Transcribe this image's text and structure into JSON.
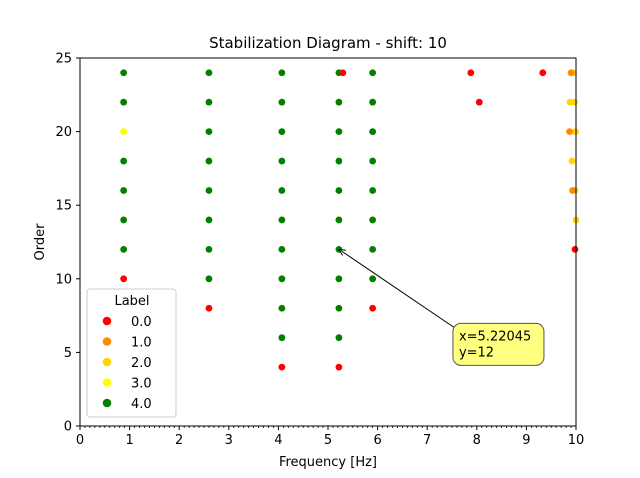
{
  "chart_data": {
    "type": "scatter",
    "title": "Stabilization Diagram - shift: 10",
    "xlabel": "Frequency [Hz]",
    "ylabel": "Order",
    "xlim": [
      0,
      10
    ],
    "ylim": [
      0,
      25
    ],
    "xticks": [
      "0",
      "1",
      "2",
      "3",
      "4",
      "5",
      "6",
      "7",
      "8",
      "9",
      "10"
    ],
    "yticks": [
      "0",
      "5",
      "10",
      "15",
      "20",
      "25"
    ],
    "grid": false,
    "legend": {
      "title": "Label",
      "placement": "lower-left",
      "entries": [
        {
          "label": "0.0",
          "color": "#ff0000"
        },
        {
          "label": "1.0",
          "color": "#ff8c00"
        },
        {
          "label": "2.0",
          "color": "#ffd700"
        },
        {
          "label": "3.0",
          "color": "#ffff00"
        },
        {
          "label": "4.0",
          "color": "#008000"
        }
      ]
    },
    "series": [
      {
        "name": "0.0",
        "color": "#ff0000",
        "points": [
          [
            0.88,
            10
          ],
          [
            2.6,
            8
          ],
          [
            4.07,
            4
          ],
          [
            5.22,
            4
          ],
          [
            5.3,
            24
          ],
          [
            5.9,
            8
          ],
          [
            7.88,
            24
          ],
          [
            8.05,
            22
          ],
          [
            9.33,
            24
          ],
          [
            9.98,
            12
          ]
        ]
      },
      {
        "name": "1.0",
        "color": "#ff8c00",
        "points": [
          [
            9.87,
            20
          ],
          [
            9.9,
            24
          ],
          [
            9.93,
            16
          ]
        ]
      },
      {
        "name": "2.0",
        "color": "#ffd700",
        "points": [
          [
            9.88,
            22
          ],
          [
            9.95,
            24
          ],
          [
            9.92,
            18
          ],
          [
            9.97,
            22
          ],
          [
            9.99,
            20
          ],
          [
            9.98,
            16
          ],
          [
            10.0,
            14
          ]
        ]
      },
      {
        "name": "3.0",
        "color": "#ffff00",
        "points": [
          [
            0.88,
            20
          ]
        ]
      },
      {
        "name": "4.0",
        "color": "#008000",
        "points": [
          [
            0.88,
            12
          ],
          [
            0.88,
            14
          ],
          [
            0.88,
            16
          ],
          [
            0.88,
            18
          ],
          [
            0.88,
            22
          ],
          [
            0.88,
            24
          ],
          [
            2.6,
            10
          ],
          [
            2.6,
            12
          ],
          [
            2.6,
            14
          ],
          [
            2.6,
            16
          ],
          [
            2.6,
            18
          ],
          [
            2.6,
            20
          ],
          [
            2.6,
            22
          ],
          [
            2.6,
            24
          ],
          [
            4.07,
            6
          ],
          [
            4.07,
            8
          ],
          [
            4.07,
            10
          ],
          [
            4.07,
            12
          ],
          [
            4.07,
            14
          ],
          [
            4.07,
            16
          ],
          [
            4.07,
            18
          ],
          [
            4.07,
            20
          ],
          [
            4.07,
            22
          ],
          [
            4.07,
            24
          ],
          [
            5.22,
            6
          ],
          [
            5.22,
            8
          ],
          [
            5.22,
            10
          ],
          [
            5.22,
            12
          ],
          [
            5.22,
            14
          ],
          [
            5.22,
            16
          ],
          [
            5.22,
            18
          ],
          [
            5.22,
            20
          ],
          [
            5.22,
            22
          ],
          [
            5.22,
            24
          ],
          [
            5.9,
            10
          ],
          [
            5.9,
            12
          ],
          [
            5.9,
            14
          ],
          [
            5.9,
            16
          ],
          [
            5.9,
            18
          ],
          [
            5.9,
            20
          ],
          [
            5.9,
            22
          ],
          [
            5.9,
            24
          ]
        ]
      }
    ],
    "annotation": {
      "line1": "x=5.22045",
      "line2": "y=12",
      "target": [
        5.22045,
        12
      ],
      "box_anchor": [
        7.6,
        6.7
      ]
    }
  }
}
